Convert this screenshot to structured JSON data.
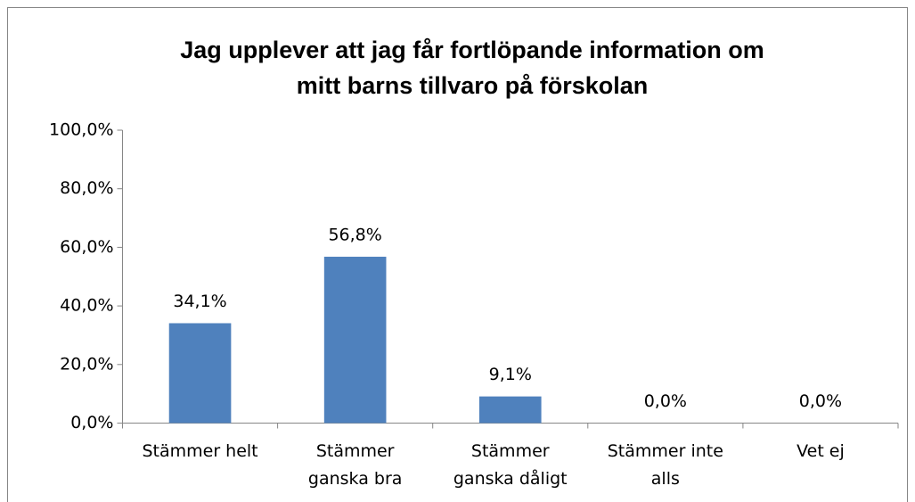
{
  "chart_data": {
    "type": "bar",
    "title": [
      "Jag upplever att jag får fortlöpande information om",
      "mitt barns tillvaro på förskolan"
    ],
    "categories": [
      [
        "Stämmer helt"
      ],
      [
        "Stämmer",
        "ganska bra"
      ],
      [
        "Stämmer",
        "ganska dåligt"
      ],
      [
        "Stämmer inte",
        "alls"
      ],
      [
        "Vet ej"
      ]
    ],
    "values": [
      34.1,
      56.8,
      9.1,
      0,
      0
    ],
    "value_labels": [
      "34,1%",
      "56,8%",
      "9,1%",
      "0,0%",
      "0,0%"
    ],
    "color": "#4f81bd",
    "ylim": [
      0,
      100
    ],
    "yticks": [
      {
        "value": 0,
        "label": "0,0%"
      },
      {
        "value": 20,
        "label": "20,0%"
      },
      {
        "value": 40,
        "label": "40,0%"
      },
      {
        "value": 60,
        "label": "60,0%"
      },
      {
        "value": 80,
        "label": "80,0%"
      },
      {
        "value": 100,
        "label": "100,0%"
      }
    ],
    "grid": false
  }
}
